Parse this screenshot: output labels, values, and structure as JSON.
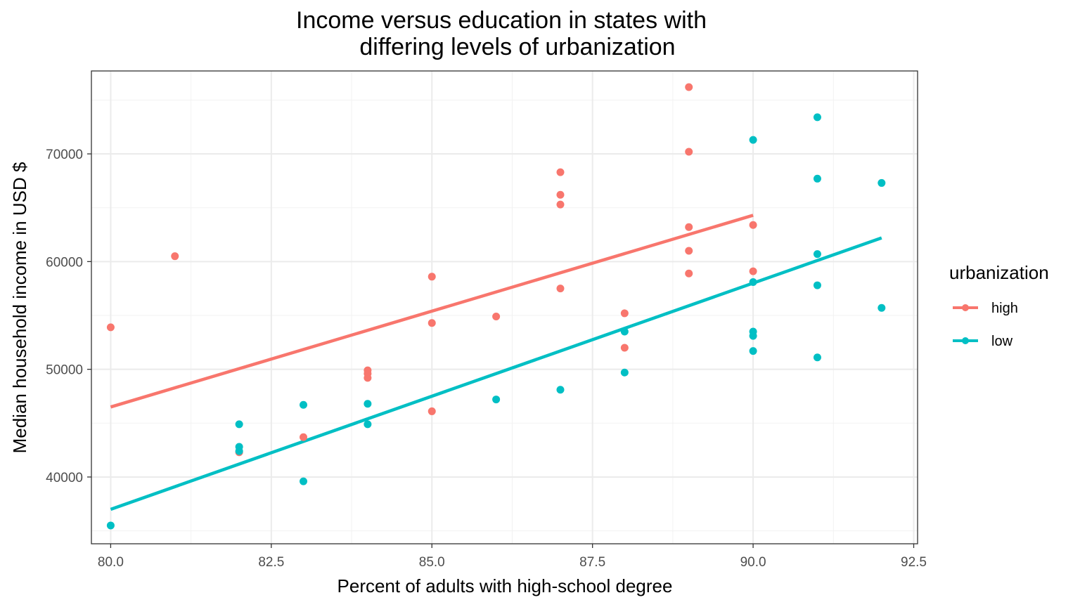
{
  "chart_data": {
    "type": "scatter",
    "title": [
      "Income versus education in states with",
      "differing levels of urbanization"
    ],
    "xlabel": "Percent of adults with high-school degree",
    "ylabel": "Median household income in USD $",
    "xlim": [
      79.7,
      92.56
    ],
    "ylim": [
      33800,
      77700
    ],
    "xticks": [
      80.0,
      82.5,
      85.0,
      87.5,
      90.0,
      92.5
    ],
    "xtick_labels": [
      "80.0",
      "82.5",
      "85.0",
      "87.5",
      "90.0",
      "92.5"
    ],
    "yticks": [
      40000,
      50000,
      60000,
      70000
    ],
    "ytick_labels": [
      "40000",
      "50000",
      "60000",
      "70000"
    ],
    "grid": true,
    "legend": {
      "title": "urbanization",
      "position": "right"
    },
    "series": [
      {
        "name": "high",
        "color": "#F8766D",
        "points": [
          [
            80,
            53900
          ],
          [
            81,
            60500
          ],
          [
            82,
            42300
          ],
          [
            83,
            43700
          ],
          [
            84,
            49900
          ],
          [
            84,
            49600
          ],
          [
            84,
            49200
          ],
          [
            85,
            58600
          ],
          [
            85,
            54300
          ],
          [
            85,
            46100
          ],
          [
            86,
            54900
          ],
          [
            87,
            68300
          ],
          [
            87,
            66200
          ],
          [
            87,
            65300
          ],
          [
            87,
            57500
          ],
          [
            88,
            55200
          ],
          [
            88,
            52000
          ],
          [
            89,
            76200
          ],
          [
            89,
            70200
          ],
          [
            89,
            63200
          ],
          [
            89,
            61000
          ],
          [
            89,
            58900
          ],
          [
            90,
            63400
          ],
          [
            90,
            59100
          ]
        ],
        "trend": [
          [
            80,
            46500
          ],
          [
            90,
            64300
          ]
        ]
      },
      {
        "name": "low",
        "color": "#00BFC4",
        "points": [
          [
            80,
            35500
          ],
          [
            82,
            44900
          ],
          [
            82,
            42800
          ],
          [
            82,
            42400
          ],
          [
            83,
            46700
          ],
          [
            83,
            39600
          ],
          [
            84,
            46800
          ],
          [
            84,
            44900
          ],
          [
            86,
            47200
          ],
          [
            87,
            48100
          ],
          [
            88,
            53500
          ],
          [
            88,
            49700
          ],
          [
            90,
            71300
          ],
          [
            90,
            58100
          ],
          [
            90,
            53500
          ],
          [
            90,
            53100
          ],
          [
            90,
            51700
          ],
          [
            91,
            73400
          ],
          [
            91,
            67700
          ],
          [
            91,
            60700
          ],
          [
            91,
            57800
          ],
          [
            91,
            51100
          ],
          [
            92,
            67300
          ],
          [
            92,
            55700
          ]
        ],
        "trend": [
          [
            80,
            37000
          ],
          [
            92,
            62200
          ]
        ]
      }
    ]
  }
}
